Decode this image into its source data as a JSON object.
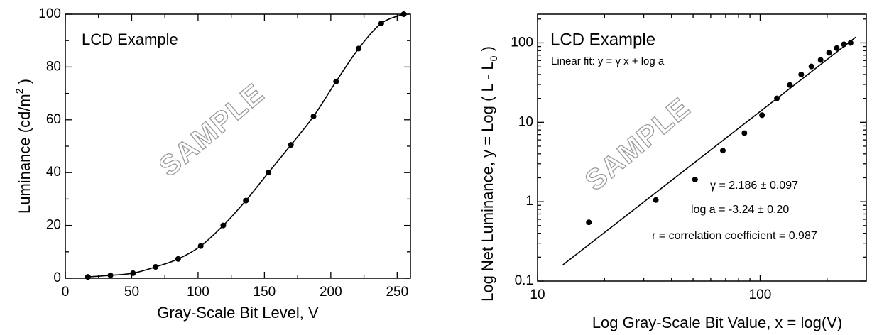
{
  "chart_data": [
    {
      "type": "line",
      "title": "LCD Example",
      "watermark": "SAMPLE",
      "xlabel": "Gray-Scale Bit Level, V",
      "ylabel": [
        {
          "text": "Luminance (cd/m"
        },
        {
          "text": "2",
          "script": "super"
        },
        {
          "text": " )"
        }
      ],
      "x": [
        17,
        34,
        51,
        68,
        85,
        102,
        119,
        136,
        153,
        170,
        187,
        204,
        221,
        238,
        255
      ],
      "series": [
        {
          "color": "#000000",
          "values": [
            0.5,
            1.1,
            1.9,
            4.3,
            7.3,
            12.2,
            20,
            29.4,
            40,
            50.5,
            61.3,
            74.5,
            87,
            96.5,
            100
          ],
          "markers": true,
          "curve": "smooth"
        }
      ],
      "xlim": [
        0,
        260
      ],
      "ylim": [
        0,
        100
      ],
      "xticks": [
        0,
        50,
        100,
        150,
        200,
        250
      ],
      "yticks": [
        0,
        20,
        40,
        60,
        80,
        100
      ],
      "minor_ticks": true
    },
    {
      "type": "scatter",
      "title": "LCD Example",
      "subtitle": "Linear fit:  y = γ x  +  log a",
      "watermark": "SAMPLE",
      "annotations": [
        "γ =  2.186 ± 0.097",
        "log a = -3.24 ± 0.20",
        "r = correlation coefficient = 0.987"
      ],
      "xlabel": "Log Gray-Scale Bit Value, x = log(V)",
      "ylabel": [
        {
          "text": "Log Net Luminance, y = Log ( L  -  L"
        },
        {
          "text": "0",
          "script": "sub"
        },
        {
          "text": " )"
        }
      ],
      "xscale": "log",
      "yscale": "log",
      "x": [
        17,
        34,
        51,
        68,
        85,
        102,
        119,
        136,
        153,
        170,
        187,
        204,
        221,
        238,
        255
      ],
      "series": [
        {
          "color": "#000000",
          "values": [
            0.55,
            1.05,
            1.9,
            4.4,
            7.3,
            12.3,
            20,
            29.5,
            40,
            50.5,
            61,
            75,
            86,
            96,
            100
          ],
          "markers": true
        },
        {
          "color": "#000000",
          "x": [
            13,
            270
          ],
          "values": [
            0.16,
            119
          ],
          "markers": false,
          "curve": "straight"
        }
      ],
      "xlim": [
        10,
        300
      ],
      "ylim": [
        0.1,
        230
      ],
      "xticks": [
        10,
        100
      ],
      "yticks": [
        0.1,
        1,
        10,
        100
      ],
      "minor_ticks": true
    }
  ]
}
